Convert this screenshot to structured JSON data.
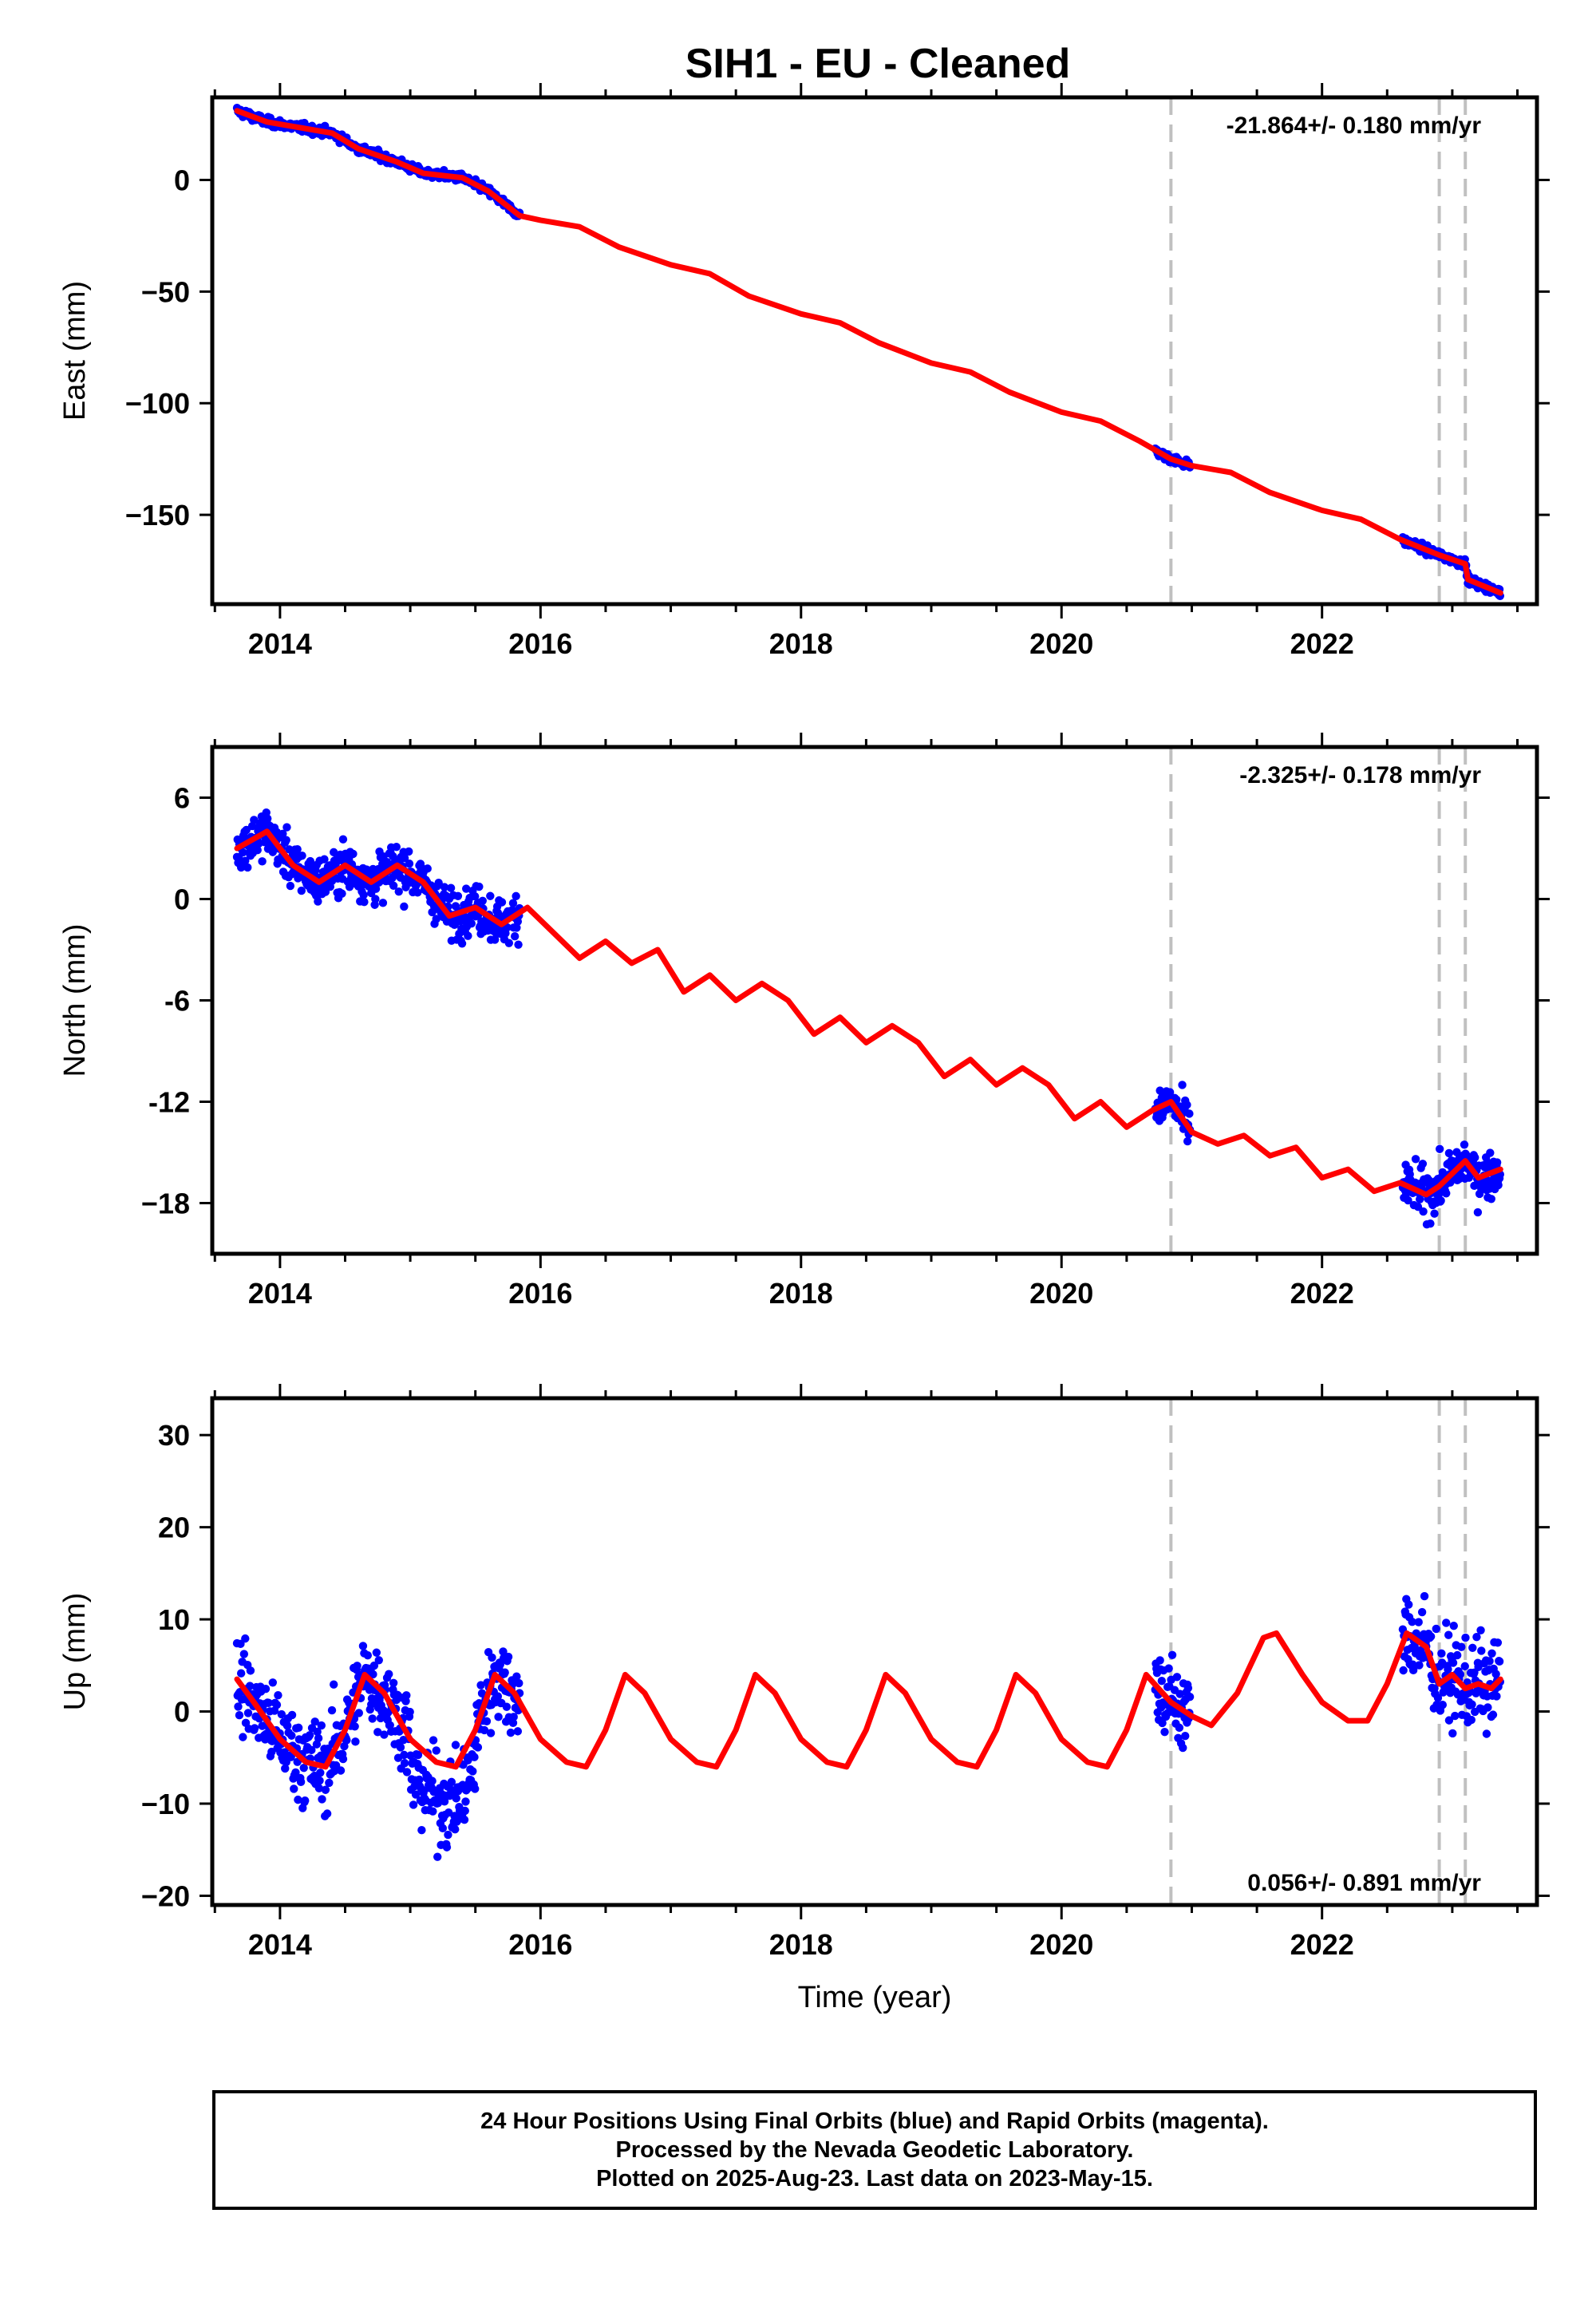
{
  "title": "SIH1  - EU - Cleaned",
  "footer": {
    "line1": "24 Hour Positions Using Final Orbits (blue) and Rapid Orbits (magenta).",
    "line2": "Processed by the Nevada Geodetic Laboratory.",
    "line3": "Plotted on 2025-Aug-23. Last data on 2023-May-15."
  },
  "colors": {
    "data": "#0000ff",
    "model": "#ff0000",
    "breaks": "#c0c0c0"
  },
  "chart_data": [
    {
      "type": "scatter",
      "component": "East",
      "ylabel": "East (mm)",
      "xlabel": "",
      "xlim": [
        2013.48,
        2023.65
      ],
      "ylim": [
        -190,
        37
      ],
      "x_ticks": [
        2014,
        2016,
        2018,
        2020,
        2022
      ],
      "y_ticks": [
        0,
        -50,
        -100,
        -150
      ],
      "y_tick_labels": [
        "0",
        "−50",
        "−100",
        "−150"
      ],
      "rate": "-21.864+/- 0.180 mm/yr",
      "rate_position": "top-right",
      "breaks": [
        2020.84,
        2022.9,
        2023.1
      ],
      "data_segments": [
        [
          2013.67,
          2015.84
        ],
        [
          2020.72,
          2020.99
        ],
        [
          2022.62,
          2023.37
        ]
      ],
      "model_points": [
        [
          2013.67,
          31
        ],
        [
          2013.9,
          26
        ],
        [
          2014.1,
          24
        ],
        [
          2014.4,
          21
        ],
        [
          2014.6,
          14
        ],
        [
          2014.9,
          8
        ],
        [
          2015.1,
          3
        ],
        [
          2015.4,
          1
        ],
        [
          2015.6,
          -5
        ],
        [
          2015.84,
          -16
        ],
        [
          2016.0,
          -18
        ],
        [
          2016.3,
          -21
        ],
        [
          2016.6,
          -30
        ],
        [
          2017.0,
          -38
        ],
        [
          2017.3,
          -42
        ],
        [
          2017.6,
          -52
        ],
        [
          2018.0,
          -60
        ],
        [
          2018.3,
          -64
        ],
        [
          2018.6,
          -73
        ],
        [
          2019.0,
          -82
        ],
        [
          2019.3,
          -86
        ],
        [
          2019.6,
          -95
        ],
        [
          2020.0,
          -104
        ],
        [
          2020.3,
          -108
        ],
        [
          2020.6,
          -117
        ],
        [
          2020.84,
          -125
        ],
        [
          2021.0,
          -128
        ],
        [
          2021.3,
          -131
        ],
        [
          2021.6,
          -140
        ],
        [
          2022.0,
          -148
        ],
        [
          2022.3,
          -152
        ],
        [
          2022.6,
          -161
        ],
        [
          2022.9,
          -168
        ],
        [
          2023.1,
          -172
        ],
        [
          2023.12,
          -179
        ],
        [
          2023.37,
          -185
        ]
      ]
    },
    {
      "type": "scatter",
      "component": "North",
      "ylabel": "North (mm)",
      "xlabel": "",
      "xlim": [
        2013.48,
        2023.65
      ],
      "ylim": [
        -21,
        9
      ],
      "x_ticks": [
        2014,
        2016,
        2018,
        2020,
        2022
      ],
      "y_ticks": [
        6,
        0,
        -6,
        -12,
        -18
      ],
      "y_tick_labels": [
        "6",
        "0",
        "-6",
        "-12",
        "−18"
      ],
      "rate": "-2.325+/- 0.178 mm/yr",
      "rate_position": "top-right",
      "breaks": [
        2020.84,
        2022.9,
        2023.1
      ],
      "data_segments": [
        [
          2013.67,
          2015.84
        ],
        [
          2020.72,
          2020.99
        ],
        [
          2022.62,
          2023.37
        ]
      ],
      "model_points": [
        [
          2013.67,
          3
        ],
        [
          2013.9,
          4
        ],
        [
          2014.1,
          2
        ],
        [
          2014.3,
          1
        ],
        [
          2014.5,
          2
        ],
        [
          2014.7,
          1
        ],
        [
          2014.9,
          2
        ],
        [
          2015.1,
          1
        ],
        [
          2015.3,
          -1
        ],
        [
          2015.5,
          -0.5
        ],
        [
          2015.7,
          -1.5
        ],
        [
          2015.9,
          -0.5
        ],
        [
          2016.1,
          -2
        ],
        [
          2016.3,
          -3.5
        ],
        [
          2016.5,
          -2.5
        ],
        [
          2016.7,
          -3.8
        ],
        [
          2016.9,
          -3
        ],
        [
          2017.1,
          -5.5
        ],
        [
          2017.3,
          -4.5
        ],
        [
          2017.5,
          -6
        ],
        [
          2017.7,
          -5
        ],
        [
          2017.9,
          -6
        ],
        [
          2018.1,
          -8
        ],
        [
          2018.3,
          -7
        ],
        [
          2018.5,
          -8.5
        ],
        [
          2018.7,
          -7.5
        ],
        [
          2018.9,
          -8.5
        ],
        [
          2019.1,
          -10.5
        ],
        [
          2019.3,
          -9.5
        ],
        [
          2019.5,
          -11
        ],
        [
          2019.7,
          -10
        ],
        [
          2019.9,
          -11
        ],
        [
          2020.1,
          -13
        ],
        [
          2020.3,
          -12
        ],
        [
          2020.5,
          -13.5
        ],
        [
          2020.7,
          -12.5
        ],
        [
          2020.84,
          -12
        ],
        [
          2021.0,
          -13.8
        ],
        [
          2021.2,
          -14.5
        ],
        [
          2021.4,
          -14
        ],
        [
          2021.6,
          -15.2
        ],
        [
          2021.8,
          -14.7
        ],
        [
          2022.0,
          -16.5
        ],
        [
          2022.2,
          -16
        ],
        [
          2022.4,
          -17.3
        ],
        [
          2022.6,
          -16.8
        ],
        [
          2022.8,
          -17.5
        ],
        [
          2022.9,
          -17
        ],
        [
          2023.1,
          -15.5
        ],
        [
          2023.2,
          -16.5
        ],
        [
          2023.37,
          -16
        ]
      ]
    },
    {
      "type": "scatter",
      "component": "Up",
      "ylabel": "Up (mm)",
      "xlabel": "Time (year)",
      "xlim": [
        2013.48,
        2023.65
      ],
      "ylim": [
        -21,
        34
      ],
      "x_ticks": [
        2014,
        2016,
        2018,
        2020,
        2022
      ],
      "y_ticks": [
        30,
        20,
        10,
        0,
        -10,
        -20
      ],
      "y_tick_labels": [
        "30",
        "20",
        "10",
        "0",
        "−10",
        "−20"
      ],
      "rate": "0.056+/- 0.891 mm/yr",
      "rate_position": "bottom-right",
      "breaks": [
        2020.84,
        2022.9,
        2023.1
      ],
      "data_segments": [
        [
          2013.67,
          2015.84
        ],
        [
          2020.72,
          2020.99
        ],
        [
          2022.62,
          2023.37
        ]
      ],
      "model_points": [
        [
          2013.67,
          3.5
        ],
        [
          2013.8,
          1
        ],
        [
          2014.0,
          -3
        ],
        [
          2014.2,
          -5.5
        ],
        [
          2014.35,
          -6
        ],
        [
          2014.5,
          -2
        ],
        [
          2014.65,
          4
        ],
        [
          2014.8,
          2
        ],
        [
          2015.0,
          -3
        ],
        [
          2015.2,
          -5.5
        ],
        [
          2015.35,
          -6
        ],
        [
          2015.5,
          -2
        ],
        [
          2015.65,
          4
        ],
        [
          2015.8,
          2
        ],
        [
          2016.0,
          -3
        ],
        [
          2016.2,
          -5.5
        ],
        [
          2016.35,
          -6
        ],
        [
          2016.5,
          -2
        ],
        [
          2016.65,
          4
        ],
        [
          2016.8,
          2
        ],
        [
          2017.0,
          -3
        ],
        [
          2017.2,
          -5.5
        ],
        [
          2017.35,
          -6
        ],
        [
          2017.5,
          -2
        ],
        [
          2017.65,
          4
        ],
        [
          2017.8,
          2
        ],
        [
          2018.0,
          -3
        ],
        [
          2018.2,
          -5.5
        ],
        [
          2018.35,
          -6
        ],
        [
          2018.5,
          -2
        ],
        [
          2018.65,
          4
        ],
        [
          2018.8,
          2
        ],
        [
          2019.0,
          -3
        ],
        [
          2019.2,
          -5.5
        ],
        [
          2019.35,
          -6
        ],
        [
          2019.5,
          -2
        ],
        [
          2019.65,
          4
        ],
        [
          2019.8,
          2
        ],
        [
          2020.0,
          -3
        ],
        [
          2020.2,
          -5.5
        ],
        [
          2020.35,
          -6
        ],
        [
          2020.5,
          -2
        ],
        [
          2020.65,
          4
        ],
        [
          2020.84,
          1
        ],
        [
          2021.0,
          -0.5
        ],
        [
          2021.15,
          -1.5
        ],
        [
          2021.35,
          2
        ],
        [
          2021.55,
          8
        ],
        [
          2021.65,
          8.5
        ],
        [
          2021.85,
          4
        ],
        [
          2022.0,
          1
        ],
        [
          2022.2,
          -1
        ],
        [
          2022.35,
          -1
        ],
        [
          2022.5,
          3
        ],
        [
          2022.65,
          8.5
        ],
        [
          2022.8,
          7
        ],
        [
          2022.9,
          3
        ],
        [
          2023.0,
          4
        ],
        [
          2023.1,
          2.5
        ],
        [
          2023.2,
          3
        ],
        [
          2023.3,
          2.5
        ],
        [
          2023.37,
          3.5
        ]
      ]
    }
  ]
}
